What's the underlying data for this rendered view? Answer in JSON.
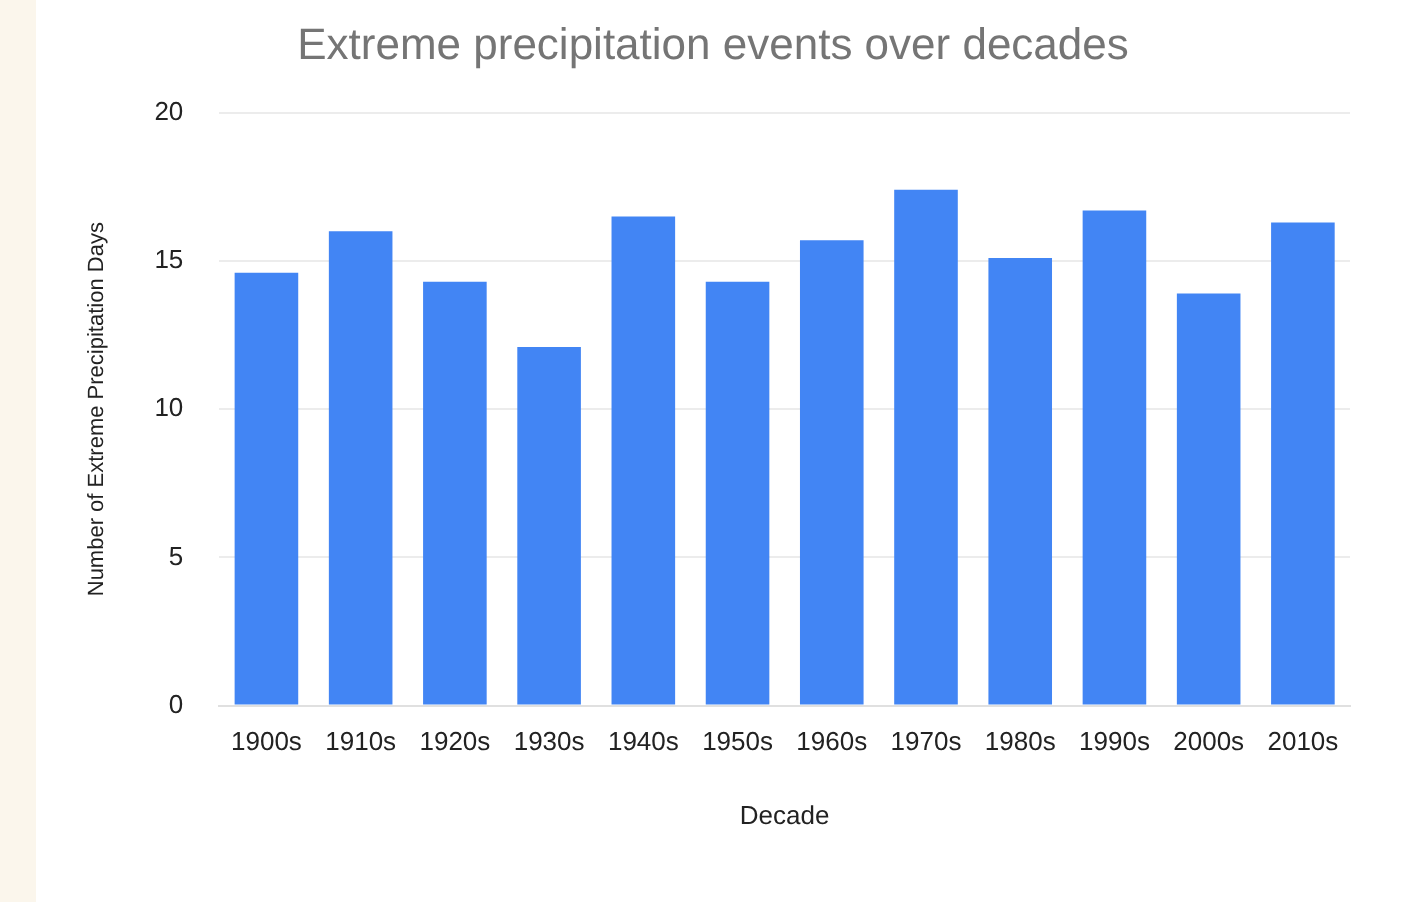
{
  "chart_data": {
    "type": "bar",
    "title": "Extreme precipitation events over decades",
    "xlabel": "Decade",
    "ylabel": "Number of Extreme Precipitation Days",
    "categories": [
      "1900s",
      "1910s",
      "1920s",
      "1930s",
      "1940s",
      "1950s",
      "1960s",
      "1970s",
      "1980s",
      "1990s",
      "2000s",
      "2010s"
    ],
    "values": [
      14.6,
      16.0,
      14.3,
      12.1,
      16.5,
      14.3,
      15.7,
      17.4,
      15.1,
      16.7,
      13.9,
      16.3
    ],
    "color": "#4285f4",
    "ylim": [
      0,
      20
    ],
    "yticks": [
      0,
      5,
      10,
      15,
      20
    ],
    "grid": "y"
  }
}
